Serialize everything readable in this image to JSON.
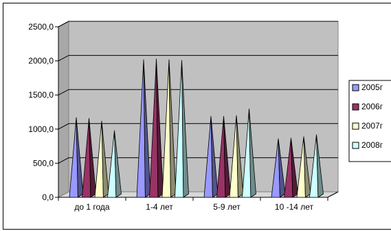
{
  "chart_data": {
    "type": "bar",
    "bar_shape": "pyramid",
    "three_d": true,
    "categories": [
      "до 1 года",
      "1-4 лет",
      "5-9 лет",
      "10 -14 лет"
    ],
    "series": [
      {
        "name": "2005г",
        "values": [
          1170,
          2020,
          1190,
          860
        ],
        "color": "#9999ff"
      },
      {
        "name": "2006г",
        "values": [
          1160,
          2030,
          1190,
          870
        ],
        "color": "#993366"
      },
      {
        "name": "2007г",
        "values": [
          1120,
          2020,
          1200,
          890
        ],
        "color": "#ffffcc"
      },
      {
        "name": "2008г",
        "values": [
          980,
          2010,
          1300,
          920
        ],
        "color": "#ccffff"
      }
    ],
    "y_ticks": [
      "0,0",
      "500,0",
      "1000,0",
      "1500,0",
      "2000,0",
      "2500,0"
    ],
    "ylim": [
      0,
      2500
    ],
    "grid": true,
    "legend_position": "right",
    "colors": {
      "wall": "#c0c0c0",
      "grid": "#000000"
    }
  }
}
